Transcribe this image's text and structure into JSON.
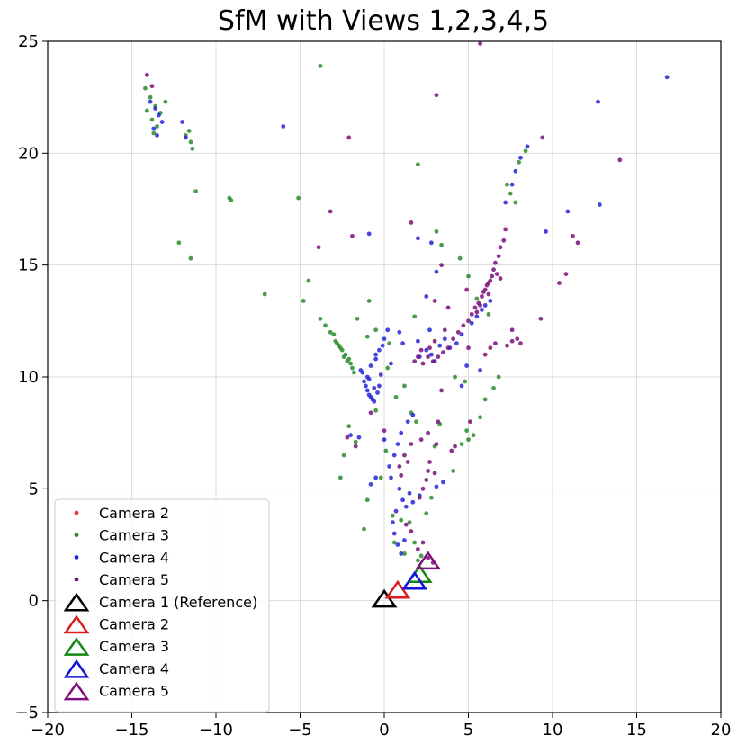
{
  "chart_data": {
    "type": "scatter",
    "title": "SfM with Views 1,2,3,4,5",
    "xlabel": "",
    "ylabel": "",
    "xlim": [
      -20,
      20
    ],
    "ylim": [
      -5,
      25
    ],
    "xticks": [
      -20,
      -15,
      -10,
      -5,
      0,
      5,
      10,
      15,
      20
    ],
    "yticks": [
      -5,
      0,
      5,
      10,
      15,
      20,
      25
    ],
    "x_tick_labels": [
      "−20",
      "−15",
      "−10",
      "−5",
      "0",
      "5",
      "10",
      "15",
      "20"
    ],
    "y_tick_labels": [
      "−5",
      "0",
      "5",
      "10",
      "15",
      "20",
      "25"
    ],
    "grid": true,
    "legend_position": "lower-left",
    "series": [
      {
        "name": "Camera 2",
        "kind": "points",
        "color": "#e8383a",
        "points": []
      },
      {
        "name": "Camera 3",
        "kind": "points",
        "color": "#2c8c2c",
        "points": [
          [
            -14.2,
            22.9
          ],
          [
            -13.9,
            22.5
          ],
          [
            -13.6,
            22.1
          ],
          [
            -13.3,
            21.8
          ],
          [
            -13.8,
            21.5
          ],
          [
            -13.5,
            21.2
          ],
          [
            -14.1,
            21.9
          ],
          [
            -13.7,
            20.9
          ],
          [
            -13.0,
            22.3
          ],
          [
            -11.8,
            20.8
          ],
          [
            -11.5,
            20.5
          ],
          [
            -11.4,
            20.2
          ],
          [
            -11.6,
            21.0
          ],
          [
            -11.2,
            18.3
          ],
          [
            -9.2,
            18.0
          ],
          [
            -9.1,
            17.9
          ],
          [
            -12.2,
            16.0
          ],
          [
            -11.5,
            15.3
          ],
          [
            -3.8,
            23.9
          ],
          [
            -5.1,
            18.0
          ],
          [
            -7.1,
            13.7
          ],
          [
            -4.8,
            13.4
          ],
          [
            -4.5,
            14.3
          ],
          [
            -3.8,
            12.6
          ],
          [
            -3.5,
            12.3
          ],
          [
            -3.0,
            11.9
          ],
          [
            -2.9,
            11.6
          ],
          [
            -2.7,
            11.4
          ],
          [
            -2.5,
            11.2
          ],
          [
            -2.3,
            11.0
          ],
          [
            -2.1,
            10.8
          ],
          [
            -2.0,
            10.6
          ],
          [
            -1.9,
            10.4
          ],
          [
            -2.6,
            11.3
          ],
          [
            -2.4,
            10.9
          ],
          [
            -2.2,
            10.7
          ],
          [
            -1.8,
            10.2
          ],
          [
            -2.8,
            11.5
          ],
          [
            -3.2,
            12.0
          ],
          [
            -1.6,
            12.6
          ],
          [
            -1.0,
            11.8
          ],
          [
            -0.9,
            13.4
          ],
          [
            -0.5,
            12.1
          ],
          [
            0.3,
            11.5
          ],
          [
            -2.1,
            7.8
          ],
          [
            -1.7,
            7.1
          ],
          [
            -2.4,
            6.5
          ],
          [
            -2.6,
            5.5
          ],
          [
            -1.2,
            3.2
          ],
          [
            -1.0,
            4.5
          ],
          [
            -0.2,
            5.5
          ],
          [
            0.1,
            6.7
          ],
          [
            0.5,
            3.8
          ],
          [
            0.6,
            2.6
          ],
          [
            1.0,
            3.6
          ],
          [
            1.2,
            2.1
          ],
          [
            1.5,
            3.5
          ],
          [
            1.8,
            2.6
          ],
          [
            2.0,
            1.8
          ],
          [
            2.2,
            2.0
          ],
          [
            2.5,
            3.9
          ],
          [
            2.8,
            4.6
          ],
          [
            3.0,
            6.9
          ],
          [
            3.3,
            7.9
          ],
          [
            4.1,
            5.8
          ],
          [
            4.6,
            7.0
          ],
          [
            4.9,
            7.6
          ],
          [
            5.0,
            7.2
          ],
          [
            5.3,
            7.4
          ],
          [
            5.7,
            8.2
          ],
          [
            6.0,
            9.0
          ],
          [
            6.5,
            9.5
          ],
          [
            6.8,
            10.0
          ],
          [
            2.0,
            19.5
          ],
          [
            3.1,
            16.5
          ],
          [
            3.4,
            15.9
          ],
          [
            4.5,
            15.3
          ],
          [
            5.0,
            14.5
          ],
          [
            5.5,
            13.5
          ],
          [
            6.2,
            12.8
          ],
          [
            7.3,
            18.6
          ],
          [
            7.5,
            18.2
          ],
          [
            7.8,
            17.8
          ],
          [
            8.0,
            19.6
          ],
          [
            8.4,
            20.1
          ],
          [
            1.8,
            12.7
          ],
          [
            1.2,
            9.6
          ],
          [
            1.6,
            8.4
          ],
          [
            1.9,
            8.0
          ],
          [
            0.7,
            9.1
          ],
          [
            4.2,
            10.0
          ],
          [
            4.8,
            9.8
          ],
          [
            -0.5,
            8.5
          ],
          [
            0.2,
            10.4
          ]
        ]
      },
      {
        "name": "Camera 4",
        "kind": "points",
        "color": "#2626d9",
        "points": [
          [
            -13.9,
            22.3
          ],
          [
            -13.6,
            22.0
          ],
          [
            -13.4,
            21.7
          ],
          [
            -13.2,
            21.4
          ],
          [
            -13.7,
            21.1
          ],
          [
            -12.0,
            21.4
          ],
          [
            -11.8,
            20.7
          ],
          [
            -13.5,
            20.8
          ],
          [
            -6.0,
            21.2
          ],
          [
            16.8,
            23.4
          ],
          [
            12.7,
            22.3
          ],
          [
            12.8,
            17.7
          ],
          [
            10.9,
            17.4
          ],
          [
            9.6,
            16.5
          ],
          [
            8.5,
            20.3
          ],
          [
            8.1,
            19.8
          ],
          [
            7.8,
            19.2
          ],
          [
            7.6,
            18.6
          ],
          [
            7.2,
            17.8
          ],
          [
            0.9,
            12.0
          ],
          [
            1.1,
            11.5
          ],
          [
            -0.5,
            11.0
          ],
          [
            -0.8,
            10.5
          ],
          [
            -1.0,
            10.0
          ],
          [
            -1.1,
            9.6
          ],
          [
            -0.9,
            9.2
          ],
          [
            -0.7,
            9.0
          ],
          [
            -1.2,
            9.8
          ],
          [
            -1.3,
            10.2
          ],
          [
            -1.0,
            9.4
          ],
          [
            -0.8,
            9.1
          ],
          [
            -0.6,
            8.9
          ],
          [
            -0.4,
            9.3
          ],
          [
            -0.3,
            9.6
          ],
          [
            -0.2,
            10.1
          ],
          [
            -0.6,
            9.5
          ],
          [
            -0.9,
            9.9
          ],
          [
            -1.4,
            10.3
          ],
          [
            -0.5,
            10.8
          ],
          [
            -0.3,
            11.2
          ],
          [
            0.0,
            11.7
          ],
          [
            0.2,
            12.1
          ],
          [
            -0.1,
            11.4
          ],
          [
            0.4,
            10.6
          ],
          [
            2.1,
            10.9
          ],
          [
            2.5,
            11.2
          ],
          [
            2.8,
            11.0
          ],
          [
            3.0,
            10.7
          ],
          [
            3.3,
            11.4
          ],
          [
            3.6,
            11.7
          ],
          [
            3.9,
            11.3
          ],
          [
            4.3,
            11.5
          ],
          [
            4.6,
            11.9
          ],
          [
            2.7,
            12.1
          ],
          [
            5.2,
            12.4
          ],
          [
            5.5,
            12.7
          ],
          [
            5.8,
            13.0
          ],
          [
            6.0,
            13.2
          ],
          [
            6.3,
            13.4
          ],
          [
            0.9,
            5.0
          ],
          [
            1.1,
            4.5
          ],
          [
            1.3,
            4.2
          ],
          [
            1.5,
            4.8
          ],
          [
            1.7,
            4.4
          ],
          [
            0.7,
            4.0
          ],
          [
            0.5,
            3.5
          ],
          [
            0.6,
            3.0
          ],
          [
            0.8,
            2.5
          ],
          [
            1.0,
            2.1
          ],
          [
            1.2,
            2.7
          ],
          [
            0.4,
            5.5
          ],
          [
            0.3,
            6.0
          ],
          [
            0.6,
            6.5
          ],
          [
            0.8,
            7.0
          ],
          [
            1.0,
            7.5
          ],
          [
            1.4,
            8.0
          ],
          [
            1.7,
            8.3
          ],
          [
            -0.5,
            5.5
          ],
          [
            -0.8,
            5.2
          ],
          [
            0.0,
            7.2
          ],
          [
            -1.5,
            7.3
          ],
          [
            -2.0,
            7.4
          ],
          [
            2.0,
            16.2
          ],
          [
            2.8,
            16.0
          ],
          [
            -0.9,
            16.4
          ],
          [
            2.5,
            13.6
          ],
          [
            3.1,
            14.7
          ],
          [
            4.6,
            9.6
          ],
          [
            4.9,
            10.5
          ],
          [
            5.7,
            10.3
          ],
          [
            3.5,
            5.3
          ],
          [
            3.1,
            5.1
          ],
          [
            2.1,
            4.7
          ],
          [
            2.0,
            11.6
          ]
        ]
      },
      {
        "name": "Camera 5",
        "kind": "points",
        "color": "#7a0f7a",
        "points": [
          [
            -14.1,
            23.5
          ],
          [
            -13.8,
            23.0
          ],
          [
            -3.2,
            17.4
          ],
          [
            -3.9,
            15.8
          ],
          [
            -1.9,
            16.3
          ],
          [
            -2.1,
            20.7
          ],
          [
            3.1,
            22.6
          ],
          [
            5.7,
            24.9
          ],
          [
            9.4,
            20.7
          ],
          [
            14.0,
            19.7
          ],
          [
            11.2,
            16.3
          ],
          [
            11.5,
            16.0
          ],
          [
            10.8,
            14.6
          ],
          [
            10.4,
            14.2
          ],
          [
            9.3,
            12.6
          ],
          [
            7.6,
            11.6
          ],
          [
            6.6,
            11.5
          ],
          [
            7.3,
            11.4
          ],
          [
            7.9,
            11.7
          ],
          [
            7.6,
            12.1
          ],
          [
            8.1,
            11.5
          ],
          [
            7.2,
            16.6
          ],
          [
            7.1,
            16.1
          ],
          [
            6.9,
            15.8
          ],
          [
            6.8,
            15.4
          ],
          [
            6.6,
            15.1
          ],
          [
            6.5,
            14.8
          ],
          [
            6.4,
            14.5
          ],
          [
            6.2,
            14.2
          ],
          [
            6.0,
            13.9
          ],
          [
            5.8,
            13.6
          ],
          [
            5.6,
            13.3
          ],
          [
            5.4,
            13.1
          ],
          [
            5.2,
            12.8
          ],
          [
            5.0,
            12.5
          ],
          [
            6.1,
            14.1
          ],
          [
            5.9,
            13.8
          ],
          [
            6.3,
            14.3
          ],
          [
            6.7,
            14.6
          ],
          [
            5.5,
            12.9
          ],
          [
            5.7,
            13.2
          ],
          [
            6.9,
            14.4
          ],
          [
            6.2,
            13.7
          ],
          [
            4.7,
            12.3
          ],
          [
            4.4,
            12.0
          ],
          [
            4.1,
            11.7
          ],
          [
            3.8,
            11.3
          ],
          [
            3.5,
            11.1
          ],
          [
            3.2,
            10.9
          ],
          [
            2.9,
            10.7
          ],
          [
            2.6,
            10.9
          ],
          [
            2.3,
            10.6
          ],
          [
            2.0,
            10.9
          ],
          [
            1.8,
            10.7
          ],
          [
            2.2,
            11.2
          ],
          [
            2.7,
            11.3
          ],
          [
            3.0,
            11.6
          ],
          [
            3.6,
            12.1
          ],
          [
            1.6,
            16.9
          ],
          [
            3.4,
            15.0
          ],
          [
            3.0,
            13.4
          ],
          [
            3.8,
            13.1
          ],
          [
            4.9,
            13.9
          ],
          [
            3.2,
            8.0
          ],
          [
            3.1,
            7.0
          ],
          [
            2.6,
            7.5
          ],
          [
            2.2,
            7.2
          ],
          [
            2.6,
            5.8
          ],
          [
            2.5,
            5.4
          ],
          [
            2.3,
            5.0
          ],
          [
            2.1,
            4.6
          ],
          [
            2.7,
            6.2
          ],
          [
            3.0,
            5.7
          ],
          [
            4.0,
            6.7
          ],
          [
            4.2,
            6.9
          ],
          [
            1.2,
            6.5
          ],
          [
            1.0,
            5.6
          ],
          [
            1.4,
            6.2
          ],
          [
            1.6,
            7.0
          ],
          [
            0.9,
            6.0
          ],
          [
            -0.8,
            8.4
          ],
          [
            -1.7,
            6.9
          ],
          [
            -2.2,
            7.3
          ],
          [
            1.3,
            3.4
          ],
          [
            1.6,
            3.1
          ],
          [
            2.0,
            2.3
          ],
          [
            2.3,
            2.6
          ],
          [
            2.6,
            1.9
          ],
          [
            2.9,
            1.7
          ],
          [
            5.1,
            8.0
          ],
          [
            3.4,
            9.4
          ],
          [
            6.0,
            11.0
          ],
          [
            6.3,
            11.3
          ],
          [
            5.0,
            11.3
          ],
          [
            0.0,
            7.6
          ]
        ]
      },
      {
        "name": "Camera 1 (Reference)",
        "kind": "camera",
        "color": "#000000",
        "points": [
          [
            0.0,
            0.0
          ]
        ]
      },
      {
        "name": "Camera 2",
        "kind": "camera",
        "color": "#d81e1e",
        "points": [
          [
            0.8,
            0.4
          ]
        ]
      },
      {
        "name": "Camera 3",
        "kind": "camera",
        "color": "#138813",
        "points": [
          [
            2.1,
            1.1
          ]
        ]
      },
      {
        "name": "Camera 4",
        "kind": "camera",
        "color": "#1414d8",
        "points": [
          [
            1.8,
            0.8
          ]
        ]
      },
      {
        "name": "Camera 5",
        "kind": "camera",
        "color": "#7f0f7f",
        "points": [
          [
            2.6,
            1.7
          ]
        ]
      }
    ],
    "legend": [
      {
        "label": "Camera 2",
        "marker": "dot",
        "color": "#e8383a"
      },
      {
        "label": "Camera 3",
        "marker": "dot",
        "color": "#2c8c2c"
      },
      {
        "label": "Camera 4",
        "marker": "dot",
        "color": "#2626d9"
      },
      {
        "label": "Camera 5",
        "marker": "dot",
        "color": "#7a0f7a"
      },
      {
        "label": "Camera 1 (Reference)",
        "marker": "triangle",
        "color": "#000000"
      },
      {
        "label": "Camera 2",
        "marker": "triangle",
        "color": "#d81e1e"
      },
      {
        "label": "Camera 3",
        "marker": "triangle",
        "color": "#138813"
      },
      {
        "label": "Camera 4",
        "marker": "triangle",
        "color": "#1414d8"
      },
      {
        "label": "Camera 5",
        "marker": "triangle",
        "color": "#7f0f7f"
      }
    ]
  }
}
